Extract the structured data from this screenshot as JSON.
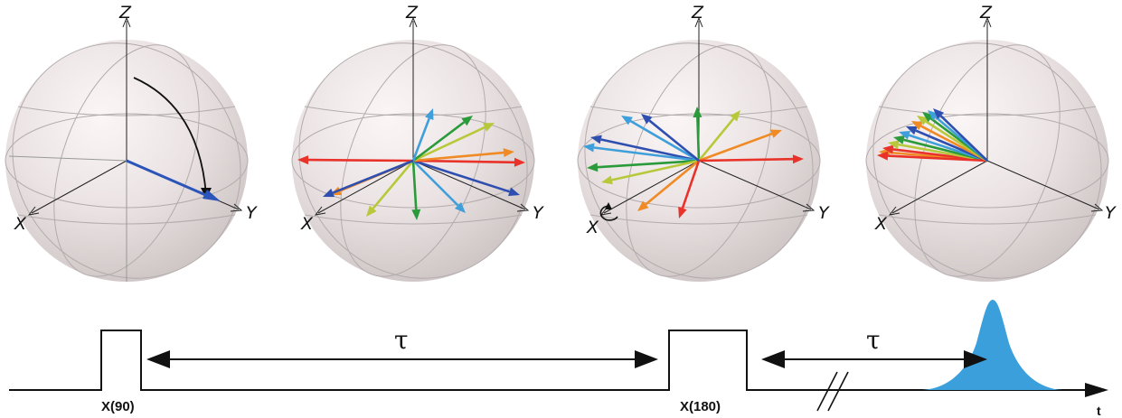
{
  "axes": {
    "z": "Z",
    "x": "X",
    "y": "Y"
  },
  "spheres": [
    {
      "id": "initial",
      "vectors": [
        {
          "color": "#2b55b8"
        }
      ],
      "rotation_arrow": true
    },
    {
      "id": "dephased",
      "vectors": [
        {
          "color": "#e8322a"
        },
        {
          "color": "#f08a24"
        },
        {
          "color": "#b7c93a"
        },
        {
          "color": "#2a9a3a"
        },
        {
          "color": "#3f9fdb"
        },
        {
          "color": "#2f4fb0"
        },
        {
          "color": "#e8322a"
        },
        {
          "color": "#f08a24"
        },
        {
          "color": "#b7c93a"
        },
        {
          "color": "#2a9a3a"
        },
        {
          "color": "#3f9fdb"
        },
        {
          "color": "#2f4fb0"
        }
      ]
    },
    {
      "id": "refocusing",
      "vectors": [
        {
          "color": "#2f4fb0"
        },
        {
          "color": "#3f9fdb"
        },
        {
          "color": "#2a9a3a"
        },
        {
          "color": "#b7c93a"
        },
        {
          "color": "#f08a24"
        },
        {
          "color": "#e8322a"
        },
        {
          "color": "#2a9a3a"
        },
        {
          "color": "#b7c93a"
        },
        {
          "color": "#f08a24"
        },
        {
          "color": "#e8322a"
        },
        {
          "color": "#3f9fdb"
        },
        {
          "color": "#2f4fb0"
        }
      ],
      "x_rotation_marker": true
    },
    {
      "id": "echo",
      "vectors": [
        {
          "color": "#f08a24"
        },
        {
          "color": "#e8322a"
        },
        {
          "color": "#b7c93a"
        },
        {
          "color": "#2a9a3a"
        },
        {
          "color": "#3f9fdb"
        },
        {
          "color": "#2f4fb0"
        },
        {
          "color": "#e8322a"
        },
        {
          "color": "#f08a24"
        },
        {
          "color": "#b7c93a"
        },
        {
          "color": "#2a9a3a"
        },
        {
          "color": "#3f9fdb"
        },
        {
          "color": "#2f4fb0"
        }
      ]
    }
  ],
  "sequence": {
    "pulse1": "X(90)",
    "pulse2": "X(180)",
    "delay1": "τ",
    "delay2": "τ",
    "time_axis": "t",
    "echo_color": "#3b9fdc"
  }
}
